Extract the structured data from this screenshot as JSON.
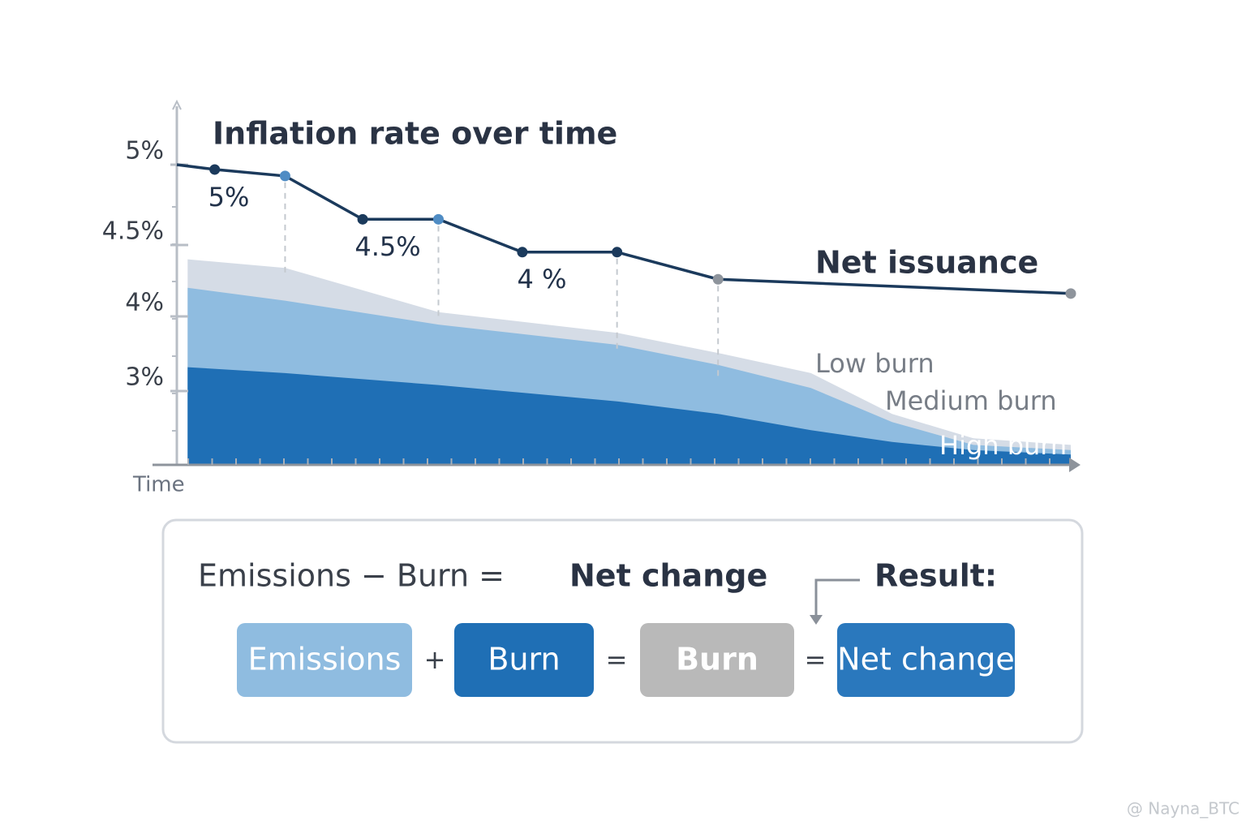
{
  "chart_data": {
    "type": "line",
    "title": "Inflation rate over time",
    "xlabel": "Time",
    "xlim": [
      0,
      100
    ],
    "ylim": [
      2.0,
      5.4
    ],
    "yticks": [
      {
        "value": 5,
        "label": "5%"
      },
      {
        "value": 4.5,
        "label": "4.5%"
      },
      {
        "value": 4,
        "label": "4%"
      },
      {
        "value": 3,
        "label": "3%"
      }
    ],
    "series": [
      {
        "name": "Net issuance",
        "color": "#1b3a5c",
        "x": [
          0,
          4.2,
          12,
          20.6,
          29,
          38.3,
          48.8,
          60,
          99.1
        ],
        "values": [
          5.0,
          4.97,
          4.93,
          4.66,
          4.66,
          4.45,
          4.45,
          4.26,
          4.16
        ]
      }
    ],
    "areas": [
      {
        "name": "Low burn",
        "color": "#d5dce6",
        "x": [
          1.2,
          12,
          29,
          48.8,
          60,
          70.3,
          79.3,
          88.3,
          99.1
        ],
        "values": [
          4.4,
          4.34,
          4.03,
          3.78,
          3.51,
          3.24,
          2.69,
          2.36,
          2.27
        ]
      },
      {
        "name": "Medium burn",
        "color": "#8fbce0",
        "x": [
          1.2,
          12,
          29,
          48.8,
          60,
          70.3,
          79.3,
          88.3,
          99.1
        ],
        "values": [
          4.2,
          4.11,
          3.89,
          3.62,
          3.35,
          3.04,
          2.58,
          2.27,
          2.2
        ]
      },
      {
        "name": "High burn",
        "color": "#1f6fb5",
        "x": [
          1.2,
          12,
          29,
          48.8,
          60,
          70.3,
          79.3,
          88.3,
          99.1
        ],
        "values": [
          3.32,
          3.24,
          3.08,
          2.86,
          2.69,
          2.47,
          2.31,
          2.2,
          2.14
        ]
      }
    ],
    "annotations": [
      "5%",
      "4.5%",
      "4 %"
    ]
  },
  "formula": {
    "equation": "Emissions − Burn =",
    "equation_bold": "Net change",
    "result": "Result:",
    "boxes": [
      "Emissions",
      "Burn",
      "Burn",
      "Net change"
    ],
    "operators": [
      "+",
      "=",
      "="
    ]
  },
  "watermark": "@ Nayna_BTC"
}
